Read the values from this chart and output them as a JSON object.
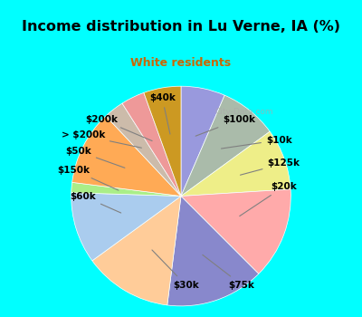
{
  "title": "Income distribution in Lu Verne, IA (%)",
  "subtitle": "White residents",
  "title_color": "#000000",
  "subtitle_color": "#cc6600",
  "background_top": "#00ffff",
  "background_chart": "#e8f5ee",
  "labels": [
    "$100k",
    "$10k",
    "$125k",
    "$20k",
    "$75k",
    "$30k",
    "$60k",
    "$150k",
    "$50k",
    "> $200k",
    "$200k",
    "$40k"
  ],
  "values": [
    6.5,
    8.5,
    9.0,
    13.5,
    14.5,
    13.0,
    10.5,
    1.5,
    11.0,
    3.0,
    3.5,
    5.5
  ],
  "colors": [
    "#9999dd",
    "#aabbaa",
    "#eeee88",
    "#ffaaaa",
    "#8888cc",
    "#ffcc99",
    "#aaccee",
    "#aaee88",
    "#ffaa55",
    "#ccbbaa",
    "#ee9999",
    "#cc9922"
  ],
  "label_positions": [
    "right",
    "right",
    "right",
    "right",
    "bottom",
    "bottom",
    "left",
    "left",
    "left",
    "left",
    "left",
    "top"
  ],
  "startangle": 90
}
